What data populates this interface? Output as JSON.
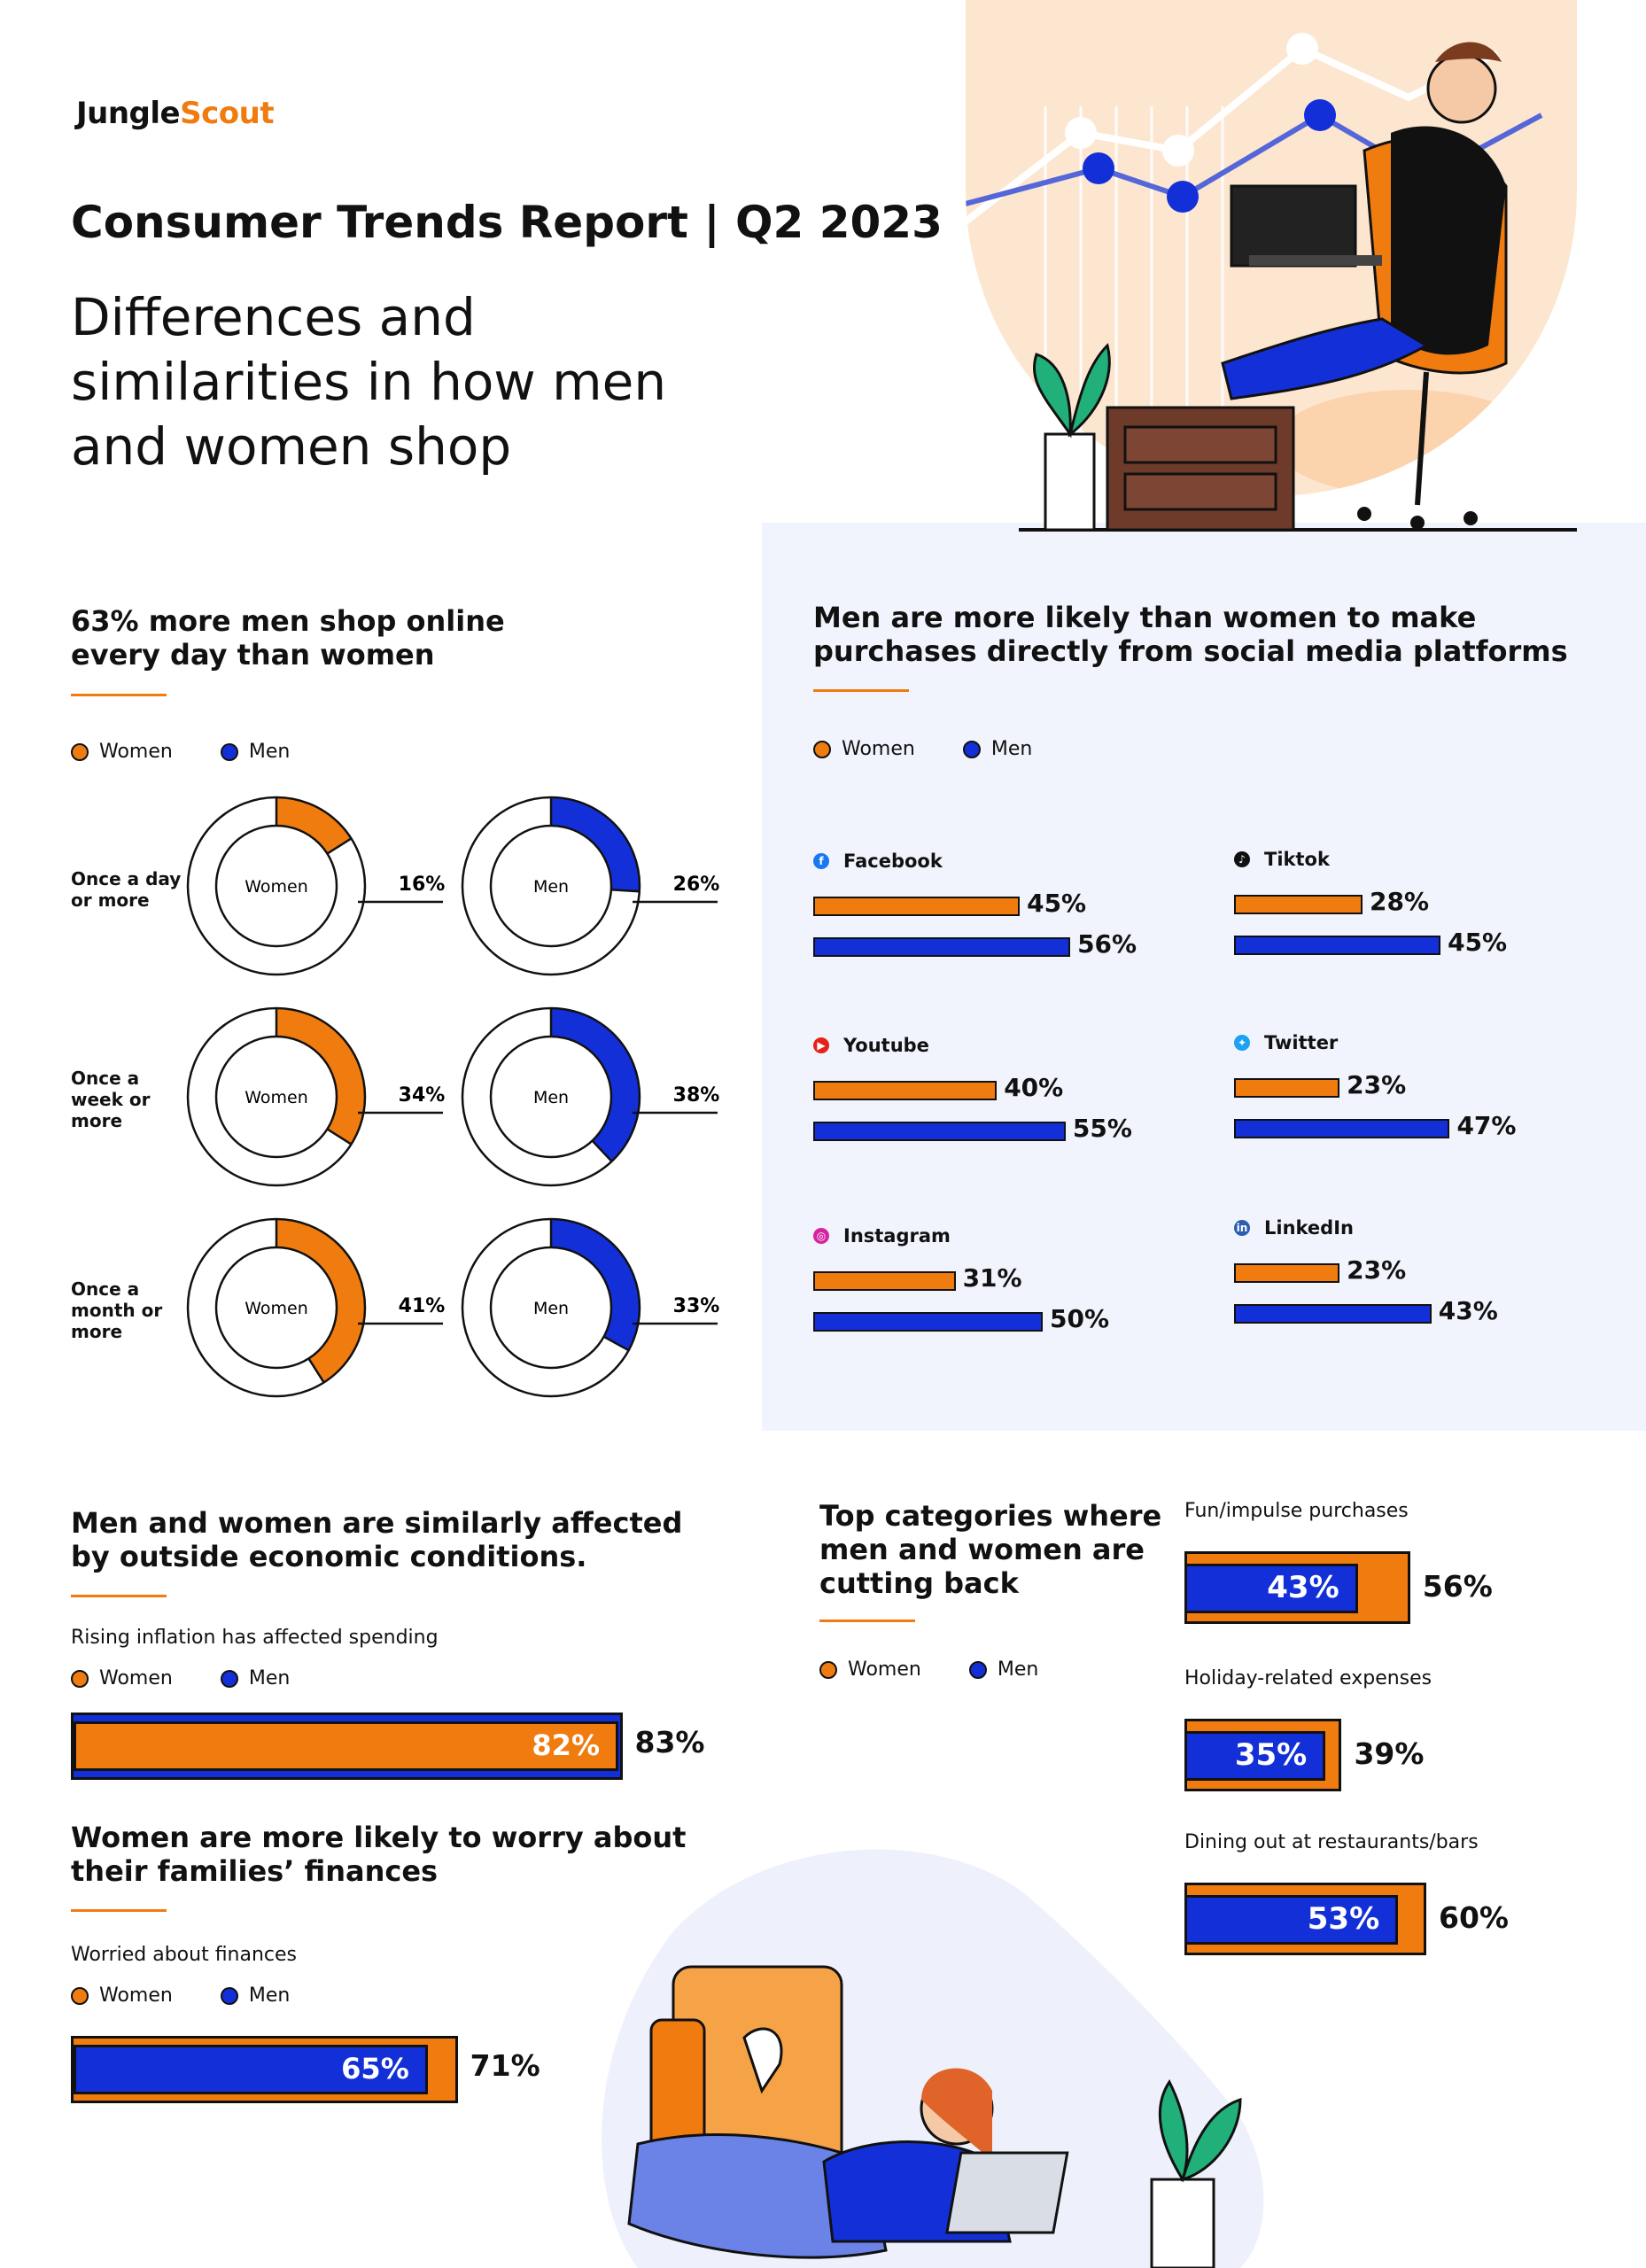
{
  "brand": {
    "part1": "Jungle",
    "part2": "Scout"
  },
  "title": "Consumer Trends Report | Q2 2023",
  "subtitle": "Differences and similarities in how men and women shop",
  "legend": {
    "women": "Women",
    "men": "Men"
  },
  "colors": {
    "women": "#f07c10",
    "men": "#1330d8"
  },
  "chart_data": [
    {
      "type": "pie",
      "title": "63% more men shop online every day than women",
      "rows": [
        {
          "label": "Once a day or more",
          "women": 16,
          "men": 26
        },
        {
          "label": "Once a week or more",
          "women": 34,
          "men": 38
        },
        {
          "label": "Once a month or more",
          "women": 41,
          "men": 33
        }
      ],
      "center_labels": {
        "women": "Women",
        "men": "Men"
      }
    },
    {
      "type": "bar",
      "title": "Men are more likely than women to make purchases directly from social media platforms",
      "categories": [
        "Facebook",
        "Tiktok",
        "Youtube",
        "Twitter",
        "Instagram",
        "LinkedIn"
      ],
      "series": [
        {
          "name": "Women",
          "values": [
            45,
            28,
            40,
            23,
            31,
            23
          ]
        },
        {
          "name": "Men",
          "values": [
            56,
            45,
            55,
            47,
            50,
            43
          ]
        }
      ]
    },
    {
      "type": "bar",
      "title": "Men and women are similarly affected by outside economic conditions.",
      "subtitle": "Rising inflation has affected spending",
      "categories": [
        "Rising inflation has affected spending"
      ],
      "series": [
        {
          "name": "Women",
          "values": [
            82
          ]
        },
        {
          "name": "Men",
          "values": [
            83
          ]
        }
      ]
    },
    {
      "type": "bar",
      "title": "Women are more likely to worry about their families’ finances",
      "subtitle": "Worried about finances",
      "categories": [
        "Worried about finances"
      ],
      "series": [
        {
          "name": "Women",
          "values": [
            71
          ]
        },
        {
          "name": "Men",
          "values": [
            65
          ]
        }
      ]
    },
    {
      "type": "bar",
      "title": "Top categories where men and women are cutting back",
      "categories": [
        "Fun/impulse purchases",
        "Holiday-related expenses",
        "Dining out at restaurants/bars"
      ],
      "series": [
        {
          "name": "Women",
          "values": [
            56,
            39,
            60
          ]
        },
        {
          "name": "Men",
          "values": [
            43,
            35,
            53
          ]
        }
      ]
    }
  ],
  "labels": {
    "freq": [
      "Once a day or more",
      "Once a week or more",
      "Once a month or more"
    ],
    "donut_pcts": [
      "16%",
      "26%",
      "34%",
      "38%",
      "41%",
      "33%"
    ],
    "social": [
      {
        "name": "Facebook",
        "women_pct": "45%",
        "men_pct": "56%"
      },
      {
        "name": "Tiktok",
        "women_pct": "28%",
        "men_pct": "45%"
      },
      {
        "name": "Youtube",
        "women_pct": "40%",
        "men_pct": "55%"
      },
      {
        "name": "Twitter",
        "women_pct": "23%",
        "men_pct": "47%"
      },
      {
        "name": "Instagram",
        "women_pct": "31%",
        "men_pct": "50%"
      },
      {
        "name": "LinkedIn",
        "women_pct": "23%",
        "men_pct": "43%"
      }
    ],
    "inflation": {
      "inner": "82%",
      "outer": "83%"
    },
    "worry": {
      "inner": "65%",
      "outer": "71%"
    },
    "cutback": [
      {
        "label": "Fun/impulse purchases",
        "inner": "43%",
        "outer": "56%"
      },
      {
        "label": "Holiday-related expenses",
        "inner": "35%",
        "outer": "39%"
      },
      {
        "label": "Dining out at restaurants/bars",
        "inner": "53%",
        "outer": "60%"
      }
    ]
  },
  "sections": {
    "online_title_l1": "63% more men shop online",
    "online_title_l2": "every day than women",
    "social_title_l1": "Men are more likely than women to make",
    "social_title_l2": "purchases directly from social media platforms",
    "econ_title_l1": "Men and women are similarly affected",
    "econ_title_l2": "by outside economic conditions.",
    "econ_sub": "Rising inflation has affected spending",
    "worry_title_l1": "Women are more likely to worry about",
    "worry_title_l2": "their families’ finances",
    "worry_sub": "Worried about finances",
    "cut_title_l1": "Top categories where",
    "cut_title_l2": "men and women are",
    "cut_title_l3": "cutting back"
  },
  "icons": [
    "facebook-icon",
    "tiktok-icon",
    "youtube-icon",
    "twitter-icon",
    "instagram-icon",
    "linkedin-icon"
  ]
}
